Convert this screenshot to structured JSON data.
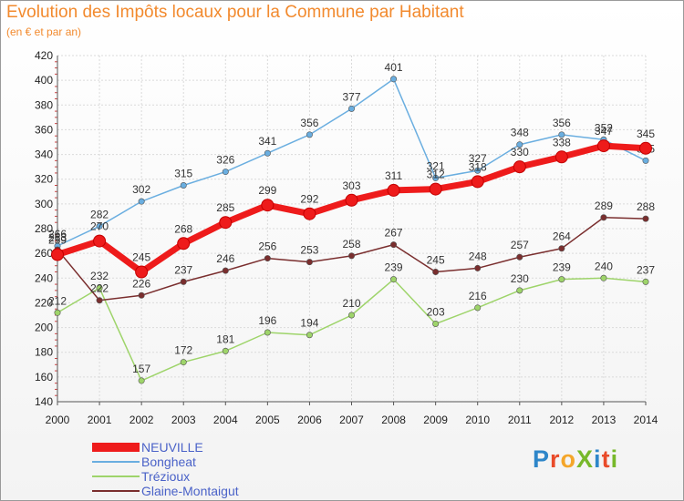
{
  "header": {
    "title": "Evolution des Impôts locaux pour la Commune par Habitant",
    "subtitle": "(en € et par an)"
  },
  "logo": {
    "text": "ProXiti",
    "letters": [
      {
        "char": "P",
        "color": "#2e86c9"
      },
      {
        "char": "r",
        "color": "#e94b2a"
      },
      {
        "char": "o",
        "color": "#f4a62a"
      },
      {
        "char": "X",
        "color": "#77b82a"
      },
      {
        "char": "i",
        "color": "#2e86c9"
      },
      {
        "char": "t",
        "color": "#e94b2a"
      },
      {
        "char": "i",
        "color": "#77b82a"
      }
    ]
  },
  "chart_data": {
    "type": "line",
    "title": "Evolution des Impôts locaux pour la Commune par Habitant",
    "subtitle": "(en € et par an)",
    "x": [
      2000,
      2001,
      2002,
      2003,
      2004,
      2005,
      2006,
      2007,
      2008,
      2009,
      2010,
      2011,
      2012,
      2013,
      2014
    ],
    "ylim": [
      140,
      420
    ],
    "yticks": [
      140,
      160,
      180,
      200,
      220,
      240,
      260,
      280,
      300,
      320,
      340,
      360,
      380,
      400,
      420
    ],
    "grid": true,
    "legend_position": "bottom-left",
    "series": [
      {
        "name": "Bongheat",
        "color": "#6aaee0",
        "values": [
          266,
          282,
          302,
          315,
          326,
          341,
          356,
          377,
          401,
          321,
          327,
          348,
          356,
          352,
          335
        ]
      },
      {
        "name": "Trézioux",
        "color": "#9ed46a",
        "values": [
          212,
          232,
          157,
          172,
          181,
          196,
          194,
          210,
          239,
          203,
          216,
          230,
          239,
          240,
          237
        ]
      },
      {
        "name": "Glaine-Montaigut",
        "color": "#7a2e2e",
        "values": [
          263,
          222,
          226,
          237,
          246,
          256,
          253,
          258,
          267,
          245,
          248,
          257,
          264,
          289,
          288
        ]
      },
      {
        "name": "NEUVILLE",
        "color": "#ee1b1b",
        "values": [
          259,
          270,
          245,
          268,
          285,
          299,
          292,
          303,
          311,
          312,
          318,
          330,
          338,
          347,
          345
        ]
      }
    ]
  }
}
